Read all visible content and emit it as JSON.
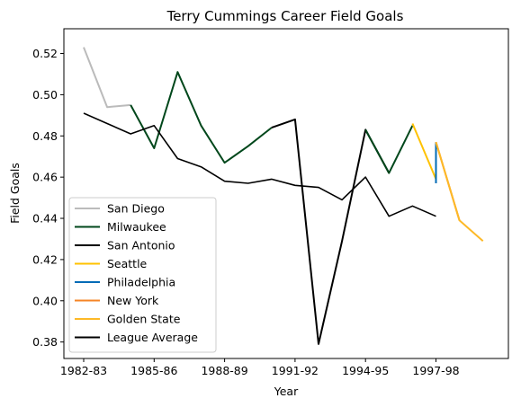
{
  "chart_data": {
    "type": "line",
    "title": "Terry Cummings Career Field Goals",
    "xlabel": "Year",
    "ylabel": "Field Goals",
    "x_categories": [
      "1982-83",
      "1983-84",
      "1984-85",
      "1985-86",
      "1986-87",
      "1987-88",
      "1988-89",
      "1989-90",
      "1990-91",
      "1991-92",
      "1992-93",
      "1993-94",
      "1994-95",
      "1995-96",
      "1996-97",
      "1997-98",
      "1998-99",
      "1999-00"
    ],
    "x_tick_labels": [
      "1982-83",
      "1985-86",
      "1988-89",
      "1991-92",
      "1994-95",
      "1997-98"
    ],
    "ylim": [
      0.372,
      0.532
    ],
    "y_ticks": [
      0.38,
      0.4,
      0.42,
      0.44,
      0.46,
      0.48,
      0.5,
      0.52
    ],
    "y_tick_labels": [
      "0.38",
      "0.40",
      "0.42",
      "0.44",
      "0.46",
      "0.48",
      "0.50",
      "0.52"
    ],
    "grid": false,
    "legend_position": "lower-left",
    "series": [
      {
        "name": "San Diego",
        "color": "#bbbbbb",
        "x": [
          "1982-83",
          "1983-84",
          "1984-85"
        ],
        "y": [
          0.523,
          0.494,
          0.495
        ]
      },
      {
        "name": "Milwaukee",
        "color": "#00471b",
        "x": [
          "1984-85",
          "1985-86",
          "1986-87",
          "1987-88",
          "1988-89",
          "1989-90",
          "1990-91"
        ],
        "y": [
          0.495,
          0.474,
          0.511,
          0.485,
          0.467,
          0.475,
          0.484
        ]
      },
      {
        "name": "San Antonio",
        "color": "#000000",
        "x": [
          "1990-91",
          "1991-92",
          "1992-93",
          "1993-94",
          "1994-95",
          "1995-96"
        ],
        "y": [
          0.484,
          0.488,
          0.379,
          0.429,
          0.483,
          0.462
        ]
      },
      {
        "name": "Milwaukee",
        "color": "#00471b",
        "legend": false,
        "x": [
          "1994-95",
          "1995-96",
          "1996-97"
        ],
        "y": [
          0.483,
          0.462,
          0.485
        ]
      },
      {
        "name": "Seattle",
        "color": "#ffc200",
        "x": [
          "1996-97",
          "1997-98"
        ],
        "y": [
          0.486,
          0.459
        ]
      },
      {
        "name": "Philadelphia",
        "color": "#006bb6",
        "x": [
          "1997-98",
          "1997-98"
        ],
        "y": [
          0.477,
          0.457
        ]
      },
      {
        "name": "New York",
        "color": "#f58426",
        "x": [
          "1997-98",
          "1998-99"
        ],
        "y": [
          0.477,
          0.439
        ]
      },
      {
        "name": "Golden State",
        "color": "#fdb927",
        "x": [
          "1997-98",
          "1998-99",
          "1999-00"
        ],
        "y": [
          0.477,
          0.439,
          0.429
        ]
      },
      {
        "name": "League Average",
        "color": "#000000",
        "x": [
          "1982-83",
          "1983-84",
          "1984-85",
          "1985-86",
          "1986-87",
          "1987-88",
          "1988-89",
          "1989-90",
          "1990-91",
          "1991-92",
          "1992-93",
          "1993-94",
          "1994-95",
          "1995-96",
          "1996-97",
          "1997-98"
        ],
        "y": [
          0.491,
          0.486,
          0.481,
          0.485,
          0.469,
          0.465,
          0.458,
          0.457,
          0.459,
          0.456,
          0.455,
          0.449,
          0.46,
          0.441,
          0.446,
          0.441
        ]
      }
    ]
  }
}
